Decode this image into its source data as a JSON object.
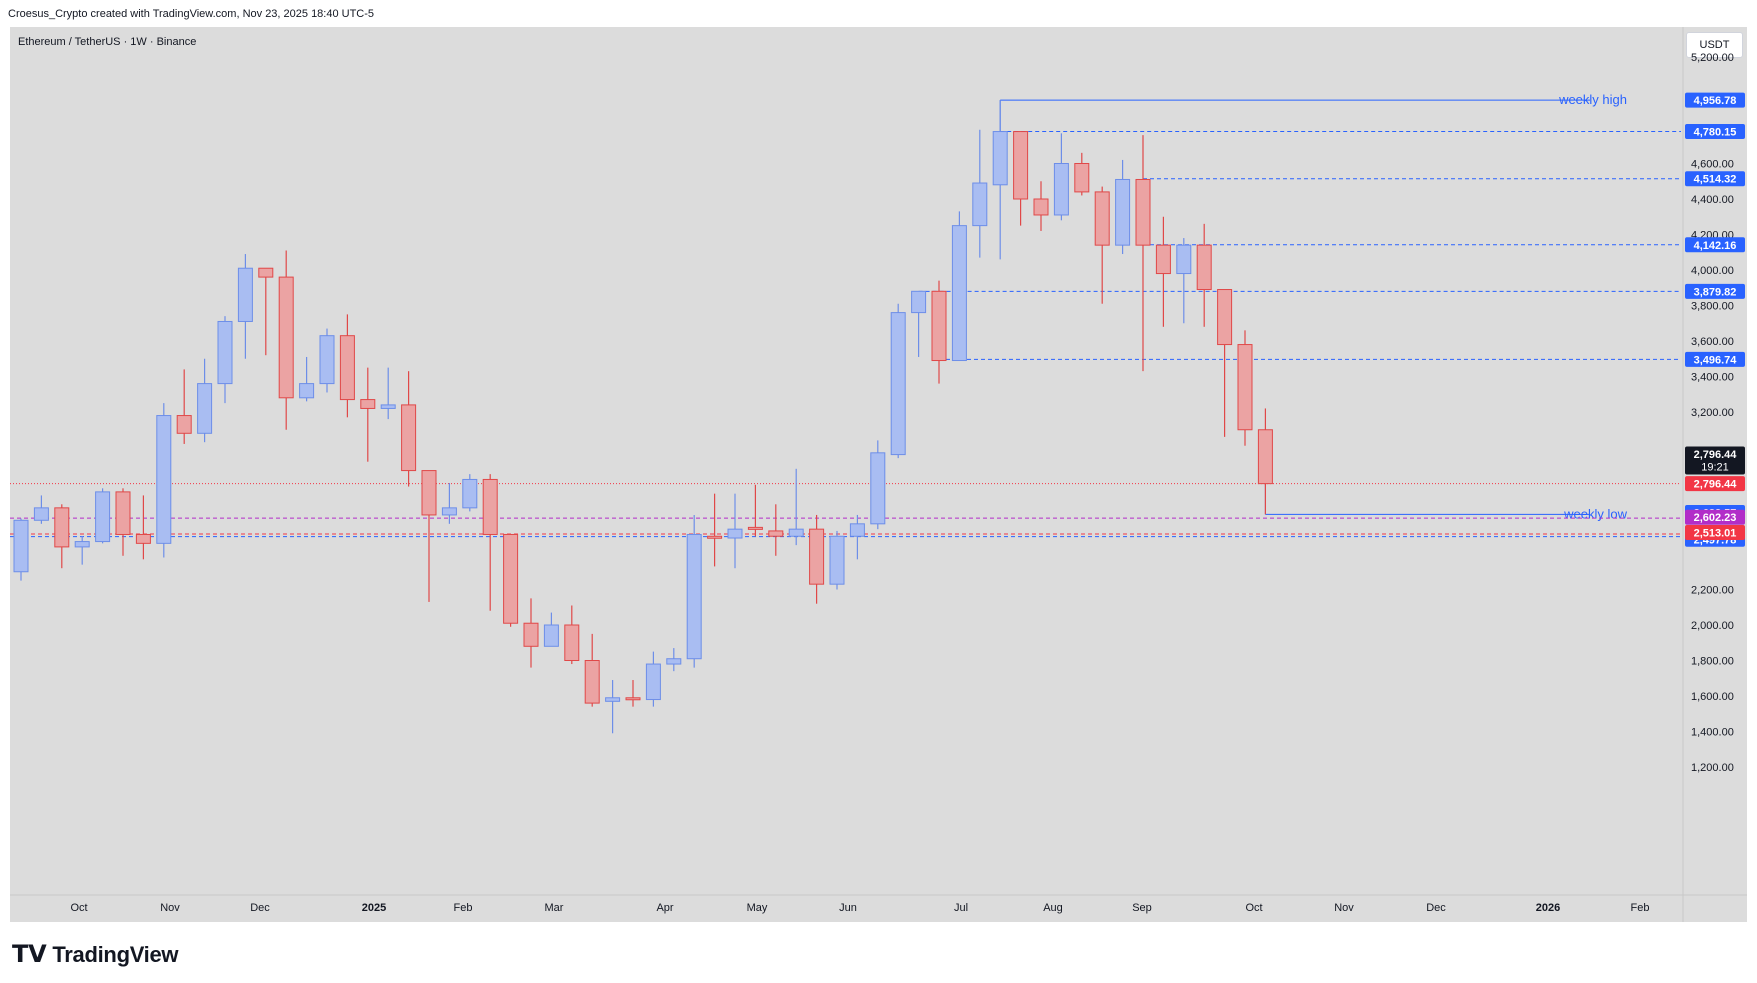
{
  "header": {
    "attribution": "Croesus_Crypto created with TradingView.com, Nov 23, 2025 18:40 UTC-5",
    "symbol": "Ethereum / TetherUS · 1W · Binance",
    "currency_button": "USDT",
    "brand": "TradingView"
  },
  "colors": {
    "up": "#6d8ee8",
    "up_fill": "#a9bdf2",
    "down": "#e04848",
    "down_fill": "#eba3a3",
    "level_line": "#2962ff",
    "label_blue": "#2962ff",
    "label_red": "#f23645",
    "label_purple": "#b22dc8",
    "label_black": "#131722"
  },
  "chart_data": {
    "type": "candlestick",
    "title": "Ethereum / TetherUS · 1W · Binance",
    "y_axis": {
      "unit": "USDT",
      "ylim": [
        1000,
        5400
      ],
      "ticks": [
        "1,200.00",
        "1,400.00",
        "1,600.00",
        "1,800.00",
        "2,000.00",
        "2,200.00",
        "3,200.00",
        "3,400.00",
        "3,600.00",
        "3,800.00",
        "4,000.00",
        "4,200.00",
        "4,400.00",
        "4,600.00",
        "5,200.00"
      ]
    },
    "x_axis": {
      "labels": [
        "Oct",
        "Nov",
        "Dec",
        "2025",
        "Feb",
        "Mar",
        "Apr",
        "May",
        "Jun",
        "Jul",
        "Aug",
        "Sep",
        "Oct",
        "Nov",
        "Dec",
        "2026",
        "Feb"
      ]
    },
    "candles": [
      {
        "date": "2024-09-16",
        "open": 2300,
        "high": 2600,
        "low": 2250,
        "close": 2590
      },
      {
        "date": "2024-09-23",
        "open": 2590,
        "high": 2730,
        "low": 2570,
        "close": 2660
      },
      {
        "date": "2024-09-30",
        "open": 2660,
        "high": 2680,
        "low": 2320,
        "close": 2440
      },
      {
        "date": "2024-10-07",
        "open": 2440,
        "high": 2500,
        "low": 2340,
        "close": 2470
      },
      {
        "date": "2024-10-14",
        "open": 2470,
        "high": 2770,
        "low": 2460,
        "close": 2750
      },
      {
        "date": "2024-10-21",
        "open": 2750,
        "high": 2770,
        "low": 2390,
        "close": 2510
      },
      {
        "date": "2024-10-28",
        "open": 2510,
        "high": 2730,
        "low": 2370,
        "close": 2460
      },
      {
        "date": "2024-11-04",
        "open": 2460,
        "high": 3250,
        "low": 2380,
        "close": 3180
      },
      {
        "date": "2024-11-11",
        "open": 3180,
        "high": 3440,
        "low": 3020,
        "close": 3080
      },
      {
        "date": "2024-11-18",
        "open": 3080,
        "high": 3500,
        "low": 3030,
        "close": 3360
      },
      {
        "date": "2024-11-25",
        "open": 3360,
        "high": 3740,
        "low": 3250,
        "close": 3710
      },
      {
        "date": "2024-12-02",
        "open": 3710,
        "high": 4090,
        "low": 3500,
        "close": 4010
      },
      {
        "date": "2024-12-09",
        "open": 4010,
        "high": 4000,
        "low": 3520,
        "close": 3960
      },
      {
        "date": "2024-12-16",
        "open": 3960,
        "high": 4110,
        "low": 3100,
        "close": 3280
      },
      {
        "date": "2024-12-23",
        "open": 3280,
        "high": 3510,
        "low": 3260,
        "close": 3360
      },
      {
        "date": "2024-12-30",
        "open": 3360,
        "high": 3670,
        "low": 3310,
        "close": 3630
      },
      {
        "date": "2025-01-06",
        "open": 3630,
        "high": 3750,
        "low": 3170,
        "close": 3270
      },
      {
        "date": "2025-01-13",
        "open": 3270,
        "high": 3450,
        "low": 2920,
        "close": 3220
      },
      {
        "date": "2025-01-20",
        "open": 3220,
        "high": 3450,
        "low": 3160,
        "close": 3240
      },
      {
        "date": "2025-01-27",
        "open": 3240,
        "high": 3430,
        "low": 2780,
        "close": 2870
      },
      {
        "date": "2025-02-03",
        "open": 2870,
        "high": 2850,
        "low": 2130,
        "close": 2620
      },
      {
        "date": "2025-02-10",
        "open": 2620,
        "high": 2800,
        "low": 2570,
        "close": 2660
      },
      {
        "date": "2025-02-17",
        "open": 2660,
        "high": 2850,
        "low": 2640,
        "close": 2820
      },
      {
        "date": "2025-02-24",
        "open": 2820,
        "high": 2850,
        "low": 2080,
        "close": 2510
      },
      {
        "date": "2025-03-03",
        "open": 2510,
        "high": 2510,
        "low": 1990,
        "close": 2010
      },
      {
        "date": "2025-03-10",
        "open": 2010,
        "high": 2150,
        "low": 1760,
        "close": 1880
      },
      {
        "date": "2025-03-17",
        "open": 1880,
        "high": 2070,
        "low": 1880,
        "close": 2000
      },
      {
        "date": "2025-03-24",
        "open": 2000,
        "high": 2110,
        "low": 1780,
        "close": 1800
      },
      {
        "date": "2025-03-31",
        "open": 1800,
        "high": 1950,
        "low": 1540,
        "close": 1560
      },
      {
        "date": "2025-04-07",
        "open": 1570,
        "high": 1690,
        "low": 1390,
        "close": 1590
      },
      {
        "date": "2025-04-14",
        "open": 1590,
        "high": 1690,
        "low": 1540,
        "close": 1580
      },
      {
        "date": "2025-04-21",
        "open": 1580,
        "high": 1850,
        "low": 1540,
        "close": 1780
      },
      {
        "date": "2025-04-28",
        "open": 1780,
        "high": 1870,
        "low": 1740,
        "close": 1810
      },
      {
        "date": "2025-05-05",
        "open": 1810,
        "high": 2620,
        "low": 1760,
        "close": 2510
      },
      {
        "date": "2025-05-12",
        "open": 2500,
        "high": 2740,
        "low": 2330,
        "close": 2490
      },
      {
        "date": "2025-05-19",
        "open": 2490,
        "high": 2740,
        "low": 2320,
        "close": 2540
      },
      {
        "date": "2025-05-26",
        "open": 2550,
        "high": 2790,
        "low": 2500,
        "close": 2540
      },
      {
        "date": "2025-06-02",
        "open": 2530,
        "high": 2680,
        "low": 2390,
        "close": 2500
      },
      {
        "date": "2025-06-09",
        "open": 2500,
        "high": 2880,
        "low": 2450,
        "close": 2540
      },
      {
        "date": "2025-06-16",
        "open": 2540,
        "high": 2620,
        "low": 2120,
        "close": 2230
      },
      {
        "date": "2025-06-23",
        "open": 2230,
        "high": 2530,
        "low": 2200,
        "close": 2500
      },
      {
        "date": "2025-06-30",
        "open": 2500,
        "high": 2620,
        "low": 2370,
        "close": 2570
      },
      {
        "date": "2025-07-07",
        "open": 2570,
        "high": 3040,
        "low": 2540,
        "close": 2970
      },
      {
        "date": "2025-07-14",
        "open": 2960,
        "high": 3810,
        "low": 2940,
        "close": 3760
      },
      {
        "date": "2025-07-21",
        "open": 3760,
        "high": 3860,
        "low": 3510,
        "close": 3880
      },
      {
        "date": "2025-07-28",
        "open": 3880,
        "high": 3940,
        "low": 3360,
        "close": 3490
      },
      {
        "date": "2025-08-04",
        "open": 3490,
        "high": 4330,
        "low": 3500,
        "close": 4250
      },
      {
        "date": "2025-08-11",
        "open": 4250,
        "high": 4790,
        "low": 4070,
        "close": 4490
      },
      {
        "date": "2025-08-18",
        "open": 4480,
        "high": 4956.78,
        "low": 4060,
        "close": 4780
      },
      {
        "date": "2025-08-25",
        "open": 4780,
        "high": 4760,
        "low": 4250,
        "close": 4400
      },
      {
        "date": "2025-09-01",
        "open": 4400,
        "high": 4500,
        "low": 4220,
        "close": 4310
      },
      {
        "date": "2025-09-08",
        "open": 4310,
        "high": 4770,
        "low": 4280,
        "close": 4600
      },
      {
        "date": "2025-09-15",
        "open": 4600,
        "high": 4660,
        "low": 4420,
        "close": 4440
      },
      {
        "date": "2025-09-22",
        "open": 4440,
        "high": 4470,
        "low": 3810,
        "close": 4140
      },
      {
        "date": "2025-09-29",
        "open": 4140,
        "high": 4620,
        "low": 4090,
        "close": 4510
      },
      {
        "date": "2025-10-06",
        "open": 4510,
        "high": 4760,
        "low": 3430,
        "close": 4140
      },
      {
        "date": "2025-10-13",
        "open": 4140,
        "high": 4300,
        "low": 3680,
        "close": 3980
      },
      {
        "date": "2025-10-20",
        "open": 3980,
        "high": 4180,
        "low": 3700,
        "close": 4140
      },
      {
        "date": "2025-10-27",
        "open": 4140,
        "high": 4260,
        "low": 3680,
        "close": 3890
      },
      {
        "date": "2025-11-03",
        "open": 3890,
        "high": 3880,
        "low": 3060,
        "close": 3580
      },
      {
        "date": "2025-11-10",
        "open": 3580,
        "high": 3660,
        "low": 3010,
        "close": 3100
      },
      {
        "date": "2025-11-17",
        "open": 3100,
        "high": 3220,
        "low": 2623.57,
        "close": 2796.44
      }
    ],
    "levels": [
      {
        "price": 4956.78,
        "label": "4,956.78",
        "style": "solid",
        "note": "weekly high"
      },
      {
        "price": 4780.15,
        "label": "4,780.15",
        "style": "dashed"
      },
      {
        "price": 4514.32,
        "label": "4,514.32",
        "style": "dashed"
      },
      {
        "price": 4142.16,
        "label": "4,142.16",
        "style": "dashed"
      },
      {
        "price": 3879.82,
        "label": "3,879.82",
        "style": "dashed"
      },
      {
        "price": 3496.74,
        "label": "3,496.74",
        "style": "dashed"
      },
      {
        "price": 2623.57,
        "label": "2,623.57",
        "style": "solid",
        "note": "weekly low"
      },
      {
        "price": 2497.78,
        "label": "2,497.78",
        "style": "dashed"
      }
    ],
    "price_labels": [
      {
        "price": 2796.44,
        "label": "2,796.44",
        "countdown": "19:21",
        "kind": "current"
      },
      {
        "price": 2796.44,
        "label": "2,796.44",
        "kind": "last"
      },
      {
        "price": 2602.23,
        "label": "2,602.23",
        "kind": "purple"
      },
      {
        "price": 2513.01,
        "label": "2,513.01",
        "kind": "red"
      }
    ],
    "annotations": [
      "weekly high",
      "weekly low"
    ]
  }
}
